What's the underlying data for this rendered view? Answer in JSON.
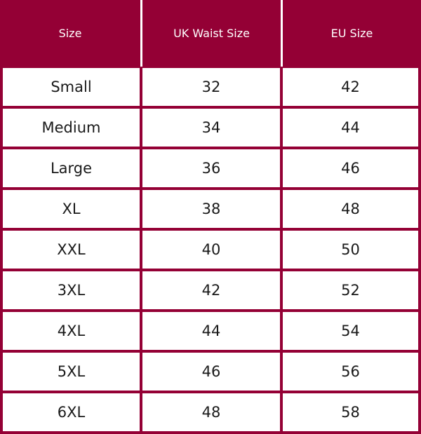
{
  "table": {
    "headers": [
      "Size",
      "UK Waist Size",
      "EU Size"
    ],
    "rows": [
      [
        "Small",
        "32",
        "42"
      ],
      [
        "Medium",
        "34",
        "44"
      ],
      [
        "Large",
        "36",
        "46"
      ],
      [
        "XL",
        "38",
        "48"
      ],
      [
        "XXL",
        "40",
        "50"
      ],
      [
        "3XL",
        "42",
        "52"
      ],
      [
        "4XL",
        "44",
        "54"
      ],
      [
        "5XL",
        "46",
        "56"
      ],
      [
        "6XL",
        "48",
        "58"
      ]
    ]
  },
  "colors": {
    "header_background": "#940035",
    "header_text": "#ffffff",
    "cell_background": "#ffffff",
    "cell_text": "#1a1a1a"
  }
}
